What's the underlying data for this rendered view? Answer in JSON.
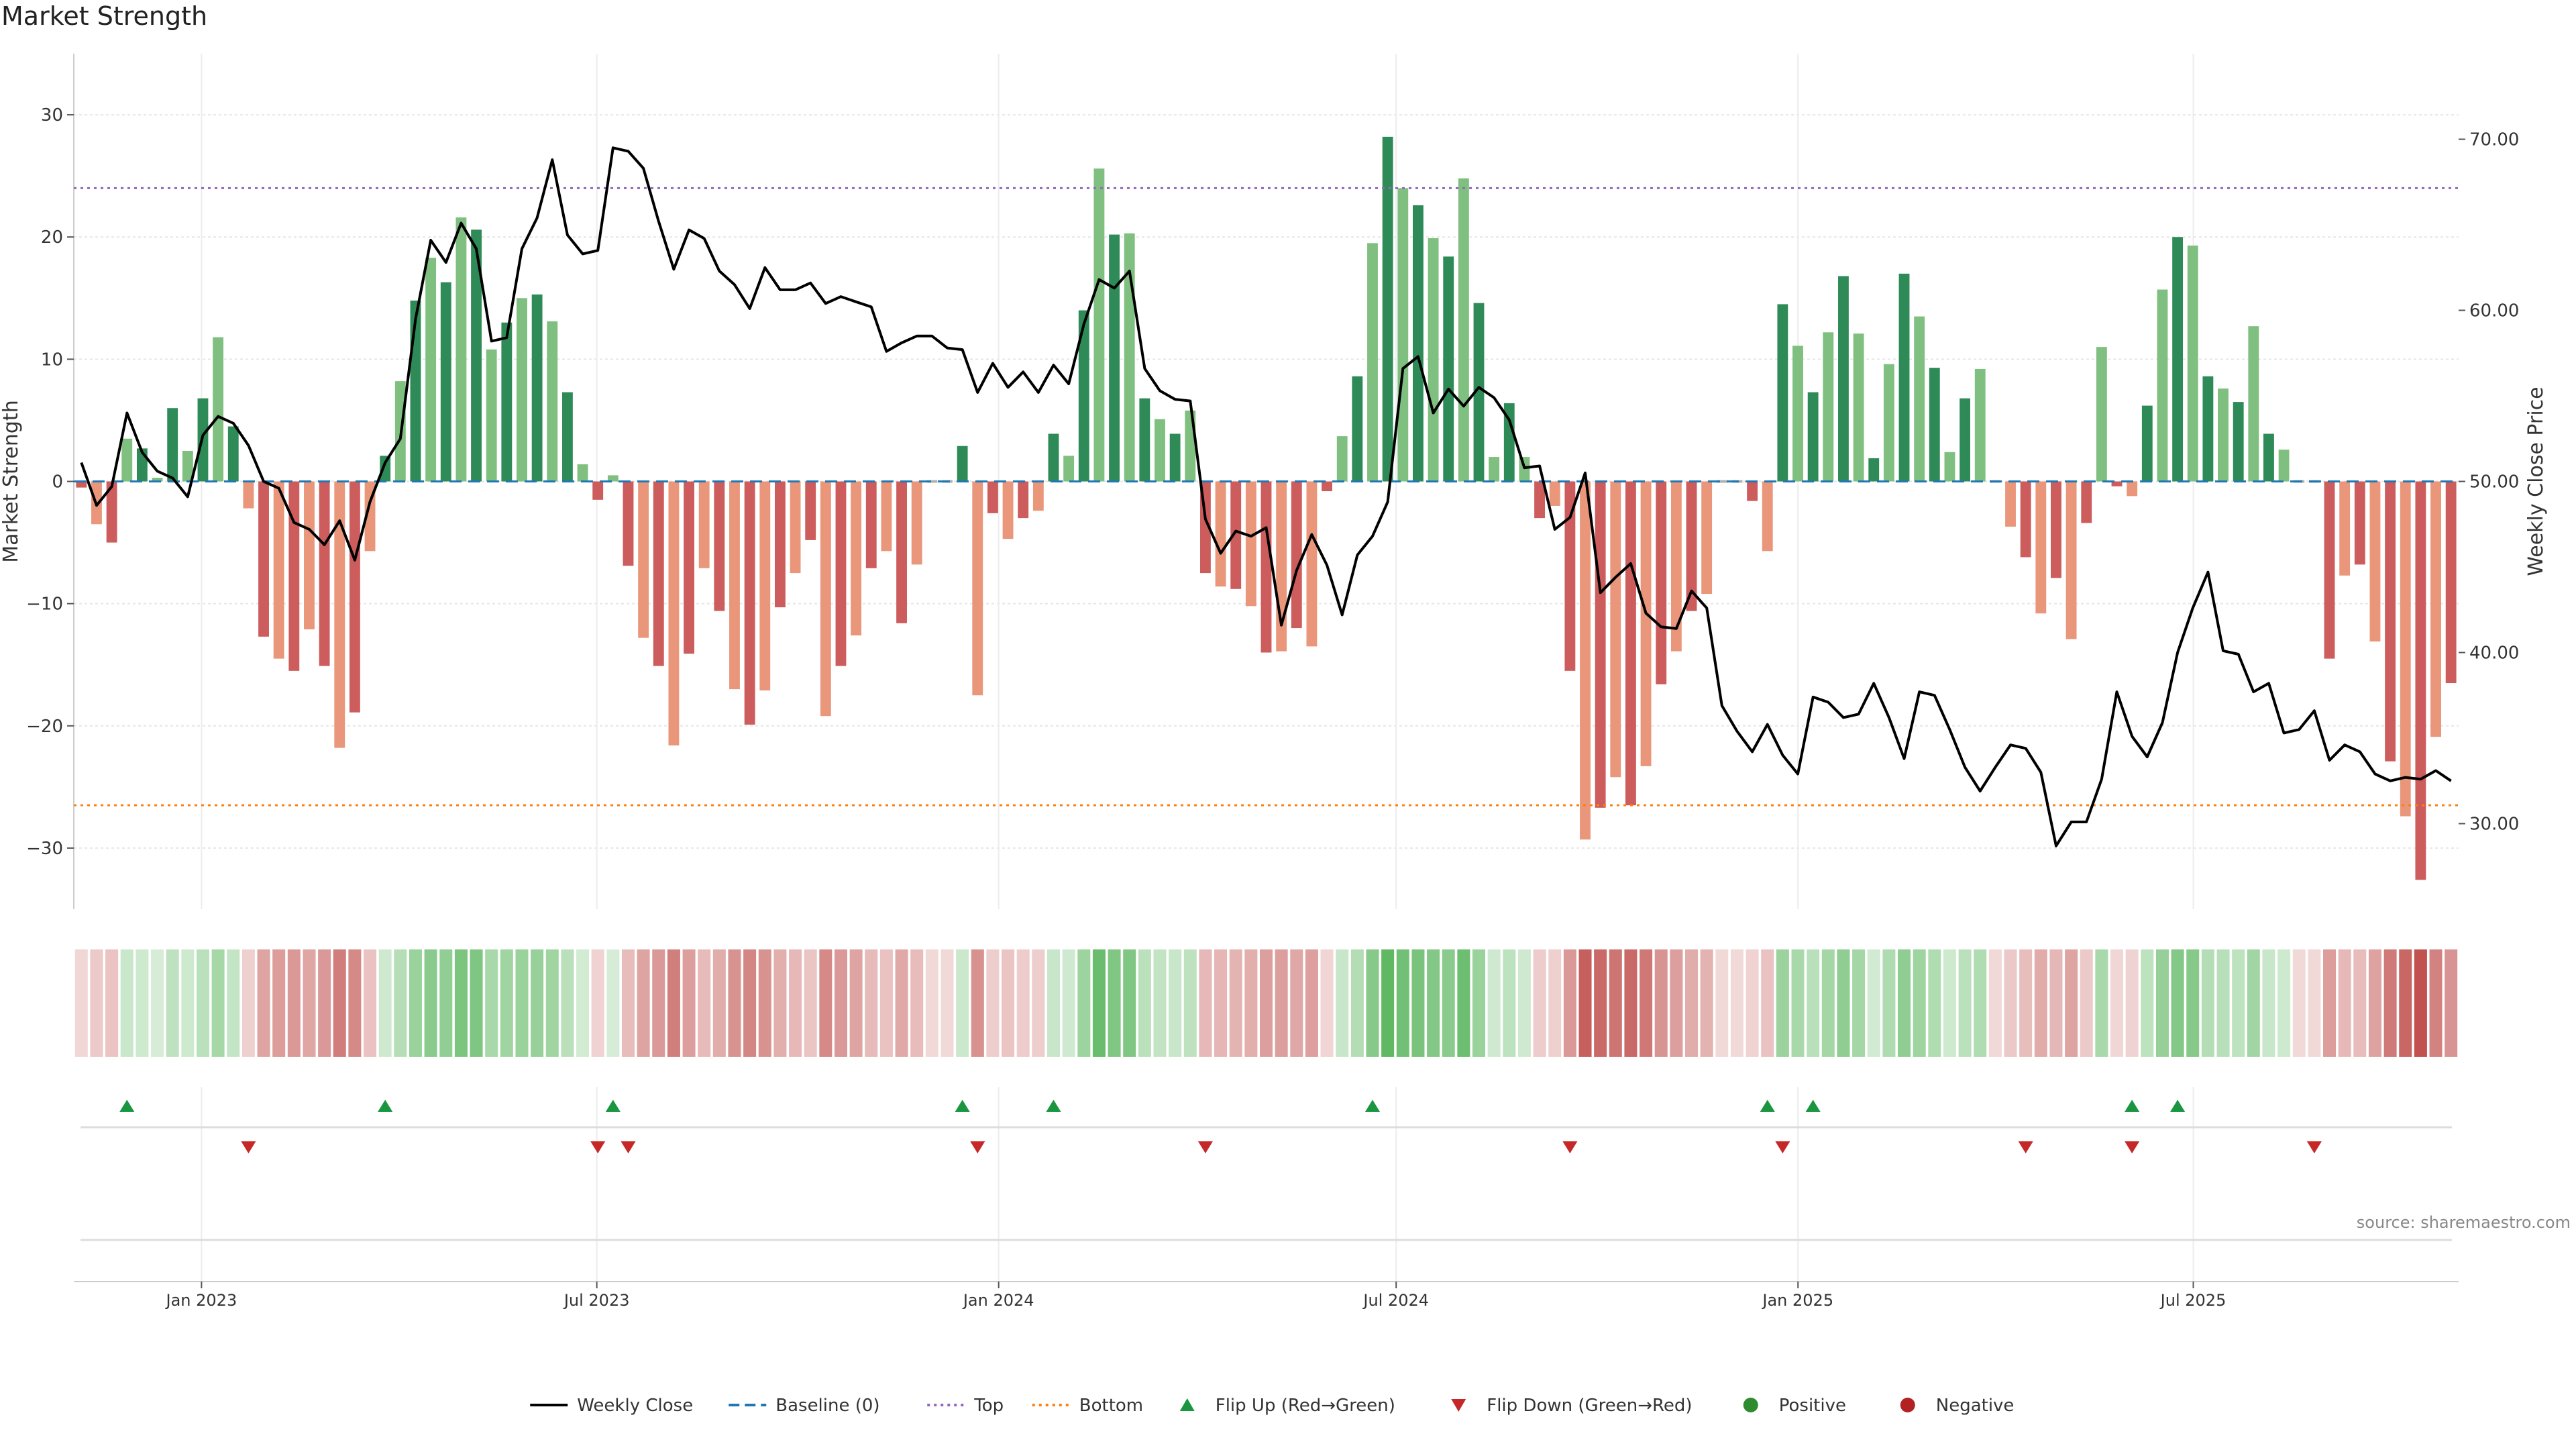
{
  "title": "Market Strength",
  "source": "source: sharemaestro.com",
  "chart_data": {
    "type": "bar",
    "title": "Market Strength",
    "ylabel": "Market Strength",
    "y2label": "Weekly Close Price",
    "ylim": [
      -35,
      35
    ],
    "y2lim": [
      25.0,
      75.0
    ],
    "yticks": [
      30,
      20,
      10,
      0,
      -10,
      -20,
      -30
    ],
    "yticks_labels": [
      "30",
      "20",
      "10",
      "0",
      "−10",
      "−20",
      "−30"
    ],
    "y2ticks": [
      70,
      60,
      50,
      40,
      30
    ],
    "y2ticks_labels": [
      "70.00",
      "60.00",
      "50.00",
      "40.00",
      "30.00"
    ],
    "top_level": 24,
    "bottom_level": -26.5,
    "date_range": [
      "2022-11-07",
      "2025-10-27"
    ],
    "xticks": [
      {
        "date": "2023-01-01",
        "label": "Jan 2023"
      },
      {
        "date": "2023-07-01",
        "label": "Jul 2023"
      },
      {
        "date": "2024-01-01",
        "label": "Jan 2024"
      },
      {
        "date": "2024-07-01",
        "label": "Jul 2024"
      },
      {
        "date": "2025-01-01",
        "label": "Jan 2025"
      },
      {
        "date": "2025-07-01",
        "label": "Jul 2025"
      }
    ],
    "strength": [
      -0.5,
      -3.5,
      -5,
      3.5,
      2.7,
      0.3,
      6,
      2.5,
      6.8,
      11.8,
      4.5,
      -2.2,
      -12.7,
      -14.5,
      -15.5,
      -12.1,
      -15.1,
      -21.8,
      -18.9,
      -5.7,
      2.1,
      8.2,
      14.8,
      18.3,
      16.3,
      21.6,
      20.6,
      10.8,
      13,
      15,
      15.3,
      13.1,
      7.3,
      1.4,
      -1.5,
      0.5,
      -6.9,
      -12.8,
      -15.1,
      -21.6,
      -14.1,
      -7.1,
      -10.6,
      -17,
      -19.9,
      -17.1,
      -10.3,
      -7.5,
      -4.8,
      -19.2,
      -15.1,
      -12.6,
      -7.1,
      -5.7,
      -11.6,
      -6.8,
      0,
      0,
      2.9,
      -17.5,
      -2.6,
      -4.7,
      -3,
      -2.4,
      3.9,
      2.1,
      14,
      25.6,
      20.2,
      20.3,
      6.8,
      5.1,
      3.9,
      5.8,
      -7.5,
      -8.6,
      -8.8,
      -10.2,
      -14,
      -13.9,
      -12,
      -13.5,
      -0.8,
      3.7,
      8.6,
      19.5,
      28.2,
      24,
      22.6,
      19.9,
      18.4,
      24.8,
      14.6,
      2,
      6.4,
      2,
      -3,
      -2,
      -15.5,
      -29.3,
      -26.7,
      -24.2,
      -26.5,
      -23.3,
      -16.6,
      -13.9,
      -10.6,
      -9.2,
      0,
      0,
      -1.6,
      -5.7,
      14.5,
      11.1,
      7.3,
      12.2,
      16.8,
      12.1,
      1.9,
      9.6,
      17,
      13.5,
      9.3,
      2.4,
      6.8,
      9.2,
      0,
      -3.7,
      -6.2,
      -10.8,
      -7.9,
      -12.9,
      -3.4,
      11,
      -0.4,
      -1.2,
      6.2,
      15.7,
      20,
      19.3,
      8.6,
      7.6,
      6.5,
      12.7,
      3.9,
      2.6,
      0,
      0,
      -14.5,
      -7.7,
      -6.8,
      -13.1,
      -22.9,
      -27.4,
      -32.6,
      -20.9,
      -16.5
    ],
    "price": [
      51.1,
      48.6,
      49.7,
      54,
      51.7,
      50.6,
      50.2,
      49.1,
      52.7,
      53.8,
      53.4,
      52.1,
      50,
      49.6,
      47.6,
      47.2,
      46.3,
      47.7,
      45.4,
      48.8,
      51.1,
      52.5,
      59.5,
      64.1,
      62.8,
      65.1,
      63.6,
      58.2,
      58.4,
      63.6,
      65.4,
      68.8,
      64.4,
      63.3,
      63.5,
      69.5,
      69.3,
      68.3,
      65.2,
      62.4,
      64.7,
      64.2,
      62.3,
      61.5,
      60.1,
      62.5,
      61.2,
      61.2,
      61.6,
      60.4,
      60.8,
      60.5,
      60.2,
      57.6,
      58.1,
      58.5,
      58.5,
      57.8,
      57.7,
      55.2,
      56.9,
      55.5,
      56.4,
      55.2,
      56.8,
      55.7,
      59.2,
      61.8,
      61.3,
      62.3,
      56.6,
      55.3,
      54.8,
      54.7,
      47.8,
      45.8,
      47.1,
      46.8,
      47.3,
      41.6,
      44.8,
      46.9,
      45.1,
      42.2,
      45.7,
      46.8,
      48.8,
      56.6,
      57.3,
      54,
      55.4,
      54.4,
      55.5,
      54.9,
      53.6,
      50.8,
      50.9,
      47.2,
      47.9,
      50.5,
      43.5,
      44.4,
      45.2,
      42.3,
      41.5,
      41.4,
      43.6,
      42.6,
      36.9,
      35.4,
      34.2,
      35.8,
      34,
      32.9,
      37.4,
      37.1,
      36.2,
      36.4,
      38.2,
      36.2,
      33.8,
      37.7,
      37.5,
      35.5,
      33.3,
      31.9,
      33.3,
      34.6,
      34.4,
      33,
      28.7,
      30.1,
      30.1,
      32.6,
      37.7,
      35.1,
      33.9,
      35.9,
      40,
      42.6,
      44.7,
      40.1,
      39.9,
      37.7,
      38.2,
      35.3,
      35.5,
      36.6,
      33.7,
      34.6,
      34.2,
      32.9,
      32.5,
      32.7,
      32.6,
      33.1,
      32.5
    ],
    "flip_up": [
      3,
      20,
      35,
      58,
      64,
      85,
      111,
      114,
      135,
      138
    ],
    "flip_down": [
      11,
      34,
      36,
      59,
      74,
      98,
      112,
      128,
      135,
      147
    ],
    "legend": [
      {
        "label": "Weekly Close",
        "kind": "line-solid",
        "color": "#000000"
      },
      {
        "label": "Baseline (0)",
        "kind": "line-dash",
        "color": "#1f77b4"
      },
      {
        "label": "Top",
        "kind": "line-dot",
        "color": "#9467bd"
      },
      {
        "label": "Bottom",
        "kind": "line-dot",
        "color": "#ff7f0e"
      },
      {
        "label": "Flip Up (Red→Green)",
        "kind": "tri-up",
        "color": "#1a9641"
      },
      {
        "label": "Flip Down (Green→Red)",
        "kind": "tri-down",
        "color": "#c62828"
      },
      {
        "label": "Positive",
        "kind": "dot",
        "color": "#2e8b2e"
      },
      {
        "label": "Negative",
        "kind": "dot",
        "color": "#b22222"
      }
    ],
    "legend_position": "bottom-center",
    "grid": true
  },
  "colors": {
    "pos_strong": "#2e8b57",
    "pos_light": "#7fbf7f",
    "neg_strong": "#cd5c5c",
    "neg_light": "#e9967a",
    "baseline": "#1f77b4",
    "top_line": "#9467bd",
    "bottom_line": "#ff7f0e",
    "price_line": "#000000",
    "flip_up": "#1a9641",
    "flip_down": "#c62828",
    "heat_pos": "#4caf50",
    "heat_neg": "#c0504d"
  }
}
